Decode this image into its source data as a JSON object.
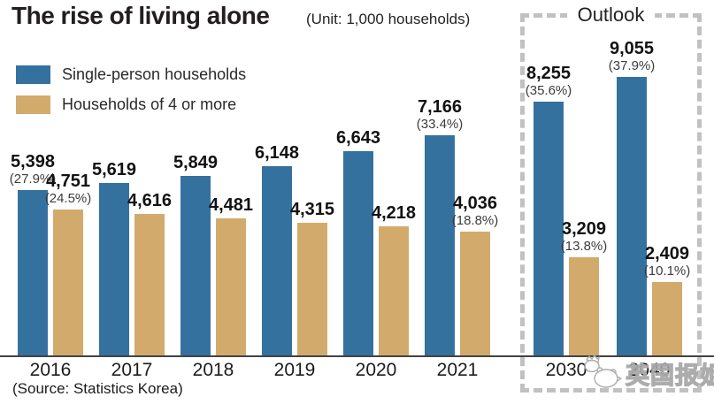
{
  "watermark": {
    "text": "英国报姐"
  },
  "chart_data": {
    "type": "bar",
    "title": "The rise of living alone",
    "unit_note": "(Unit: 1,000 households)",
    "source": "(Source: Statistics Korea)",
    "outlook_label": "Outlook",
    "legend_position": "top-left",
    "grid": false,
    "ylim": [
      0,
      9055
    ],
    "categories": [
      "2016",
      "2017",
      "2018",
      "2019",
      "2020",
      "2021",
      "2030",
      "2040"
    ],
    "outlook_from_index": 6,
    "series": [
      {
        "name": "Single-person households",
        "color": "#35719F",
        "values": [
          5398,
          5619,
          5849,
          6148,
          6643,
          7166,
          8255,
          9055
        ],
        "pct_labels": [
          "(27.9%)",
          null,
          null,
          null,
          null,
          "(33.4%)",
          "(35.6%)",
          "(37.9%)"
        ]
      },
      {
        "name": "Households of 4 or more",
        "color": "#D2AB6C",
        "values": [
          4751,
          4616,
          4481,
          4315,
          4218,
          4036,
          3209,
          2409
        ],
        "pct_labels": [
          "(24.5%)",
          null,
          null,
          null,
          null,
          "(18.8%)",
          "(13.8%)",
          "(10.1%)"
        ]
      }
    ]
  }
}
